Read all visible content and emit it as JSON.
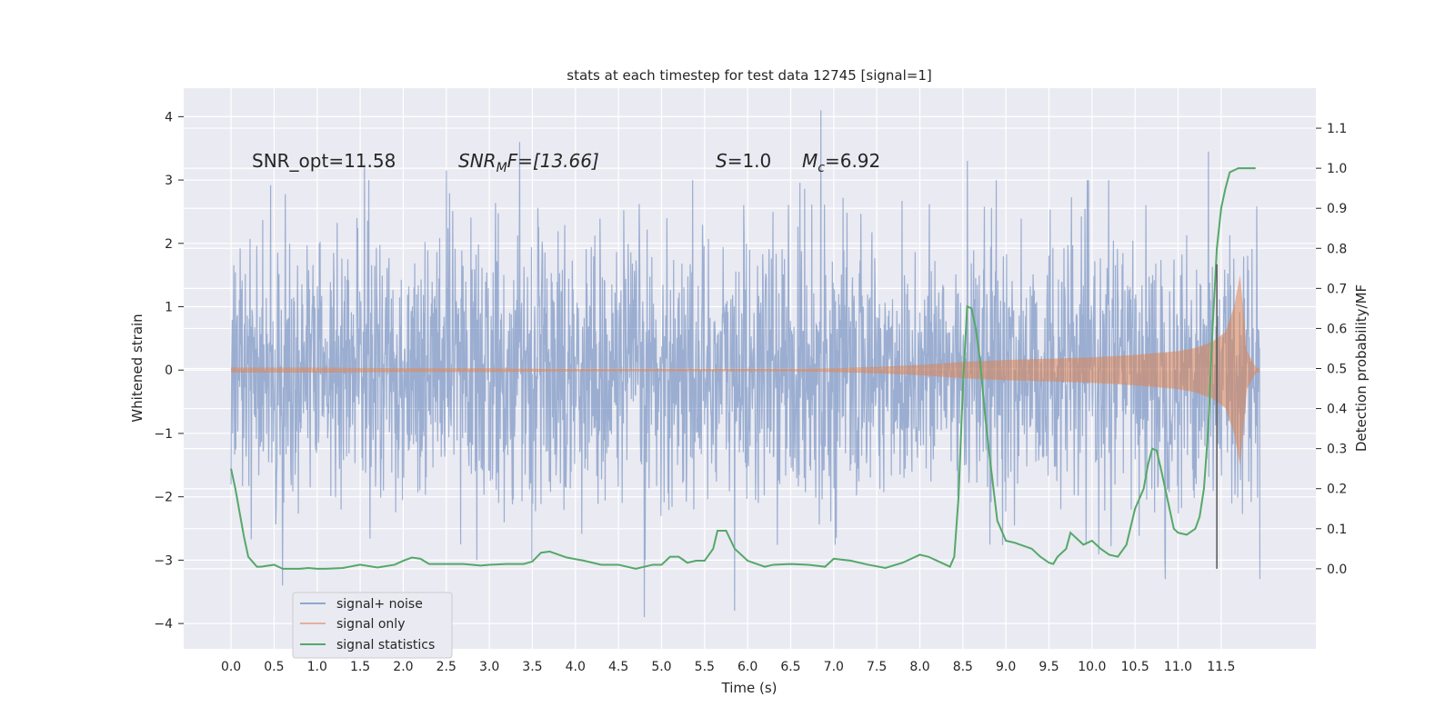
{
  "chart_data": {
    "type": "line",
    "title": "stats at each timestep for test data 12745 [signal=1]",
    "xlabel": "Time (s)",
    "ylabel_left": "Whitened strain",
    "ylabel_right": "Detection probability/MF",
    "xlim": [
      -0.55,
      12.6
    ],
    "ylim_left": [
      -4.4,
      4.45
    ],
    "ylim_right": [
      -0.2,
      1.2
    ],
    "x_ticks": [
      "0.0",
      "0.5",
      "1.0",
      "1.5",
      "2.0",
      "2.5",
      "3.0",
      "3.5",
      "4.0",
      "4.5",
      "5.0",
      "5.5",
      "6.0",
      "6.5",
      "7.0",
      "7.5",
      "8.0",
      "8.5",
      "9.0",
      "9.5",
      "10.0",
      "10.5",
      "11.0",
      "11.5"
    ],
    "y_ticks_left": [
      "−4",
      "−3",
      "−2",
      "−1",
      "0",
      "1",
      "2",
      "3",
      "4"
    ],
    "y_ticks_right": [
      "0.0",
      "0.1",
      "0.2",
      "0.3",
      "0.4",
      "0.5",
      "0.6",
      "0.7",
      "0.8",
      "0.9",
      "1.0",
      "1.1"
    ],
    "grid": true,
    "legend_position": "lower-left",
    "colors": {
      "plot_bg": "#eaeaf2",
      "grid": "#ffffff",
      "noise": "#4c72b0",
      "signal": "#dd8452",
      "stats": "#55a868",
      "vline": "#555555"
    },
    "annotations": {
      "snr_opt": "SNR_opt=11.58",
      "snr_mf_base": "SNR",
      "snr_mf_sub": "M",
      "snr_mf_rest": "F=[13.66]",
      "s_var": "S",
      "s_rest": "=1.0",
      "mc_var": "M",
      "mc_sub": "c",
      "mc_rest": "=6.92"
    },
    "vertical_line_x": 11.45,
    "series": [
      {
        "name": "signal+ noise",
        "note_style": "dense whitened noise trace",
        "x_range": [
          0.0,
          11.95
        ],
        "envelope_typical": 1.3,
        "peaks": [
          {
            "x": 6.85,
            "y": 4.1
          },
          {
            "x": 1.55,
            "y": 3.25
          },
          {
            "x": 2.5,
            "y": 3.15
          },
          {
            "x": 3.35,
            "y": 3.6
          },
          {
            "x": 8.55,
            "y": 3.3
          },
          {
            "x": 11.35,
            "y": 3.45
          },
          {
            "x": 4.8,
            "y": -3.9
          },
          {
            "x": 5.85,
            "y": -3.8
          },
          {
            "x": 0.6,
            "y": -3.4
          },
          {
            "x": 11.95,
            "y": -3.3
          },
          {
            "x": 10.85,
            "y": -3.3
          }
        ]
      },
      {
        "name": "signal only",
        "x": [
          0.0,
          1.0,
          2.0,
          3.0,
          4.0,
          5.0,
          6.0,
          6.5,
          7.0,
          7.5,
          8.0,
          8.5,
          9.0,
          9.5,
          10.0,
          10.5,
          11.0,
          11.2,
          11.4,
          11.55,
          11.65,
          11.72,
          11.8,
          11.9,
          11.95
        ],
        "amplitude": [
          0.04,
          0.04,
          0.03,
          0.03,
          0.02,
          0.02,
          0.02,
          0.02,
          0.03,
          0.05,
          0.08,
          0.13,
          0.16,
          0.18,
          0.2,
          0.24,
          0.3,
          0.35,
          0.45,
          0.6,
          1.0,
          1.5,
          0.3,
          0.05,
          0.02
        ]
      },
      {
        "name": "signal statistics",
        "x": [
          0.0,
          0.05,
          0.1,
          0.15,
          0.2,
          0.3,
          0.35,
          0.5,
          0.6,
          0.7,
          0.8,
          0.9,
          1.0,
          1.1,
          1.3,
          1.5,
          1.7,
          1.9,
          2.0,
          2.1,
          2.2,
          2.3,
          2.5,
          2.7,
          2.9,
          3.0,
          3.2,
          3.4,
          3.5,
          3.6,
          3.7,
          3.9,
          4.1,
          4.3,
          4.5,
          4.7,
          4.9,
          5.0,
          5.1,
          5.2,
          5.3,
          5.4,
          5.5,
          5.6,
          5.65,
          5.75,
          5.85,
          6.0,
          6.2,
          6.3,
          6.5,
          6.7,
          6.9,
          7.0,
          7.2,
          7.4,
          7.6,
          7.8,
          8.0,
          8.1,
          8.2,
          8.3,
          8.35,
          8.4,
          8.45,
          8.5,
          8.55,
          8.6,
          8.65,
          8.7,
          8.75,
          8.8,
          8.9,
          9.0,
          9.1,
          9.3,
          9.4,
          9.5,
          9.55,
          9.6,
          9.7,
          9.75,
          9.85,
          9.9,
          9.95,
          10.0,
          10.1,
          10.2,
          10.3,
          10.4,
          10.5,
          10.6,
          10.65,
          10.7,
          10.75,
          10.8,
          10.85,
          10.9,
          10.95,
          11.0,
          11.1,
          11.2,
          11.25,
          11.3,
          11.35,
          11.4,
          11.45,
          11.5,
          11.55,
          11.6,
          11.7,
          11.9
        ],
        "values": [
          0.25,
          0.2,
          0.14,
          0.08,
          0.03,
          0.005,
          0.005,
          0.01,
          0.0,
          0.0,
          0.0,
          0.002,
          0.0,
          0.0,
          0.002,
          0.01,
          0.003,
          0.01,
          0.02,
          0.028,
          0.025,
          0.012,
          0.012,
          0.012,
          0.008,
          0.01,
          0.012,
          0.012,
          0.018,
          0.04,
          0.043,
          0.028,
          0.02,
          0.01,
          0.01,
          0.0,
          0.01,
          0.01,
          0.03,
          0.03,
          0.015,
          0.02,
          0.02,
          0.05,
          0.095,
          0.095,
          0.05,
          0.02,
          0.005,
          0.01,
          0.012,
          0.01,
          0.005,
          0.025,
          0.02,
          0.01,
          0.002,
          0.015,
          0.035,
          0.03,
          0.02,
          0.01,
          0.005,
          0.03,
          0.18,
          0.45,
          0.655,
          0.65,
          0.6,
          0.52,
          0.4,
          0.3,
          0.12,
          0.07,
          0.065,
          0.05,
          0.03,
          0.015,
          0.012,
          0.03,
          0.05,
          0.09,
          0.07,
          0.06,
          0.065,
          0.07,
          0.05,
          0.035,
          0.03,
          0.06,
          0.15,
          0.2,
          0.26,
          0.3,
          0.295,
          0.25,
          0.2,
          0.15,
          0.1,
          0.09,
          0.085,
          0.1,
          0.13,
          0.2,
          0.35,
          0.6,
          0.8,
          0.9,
          0.95,
          0.99,
          1.0,
          1.0
        ]
      }
    ]
  }
}
